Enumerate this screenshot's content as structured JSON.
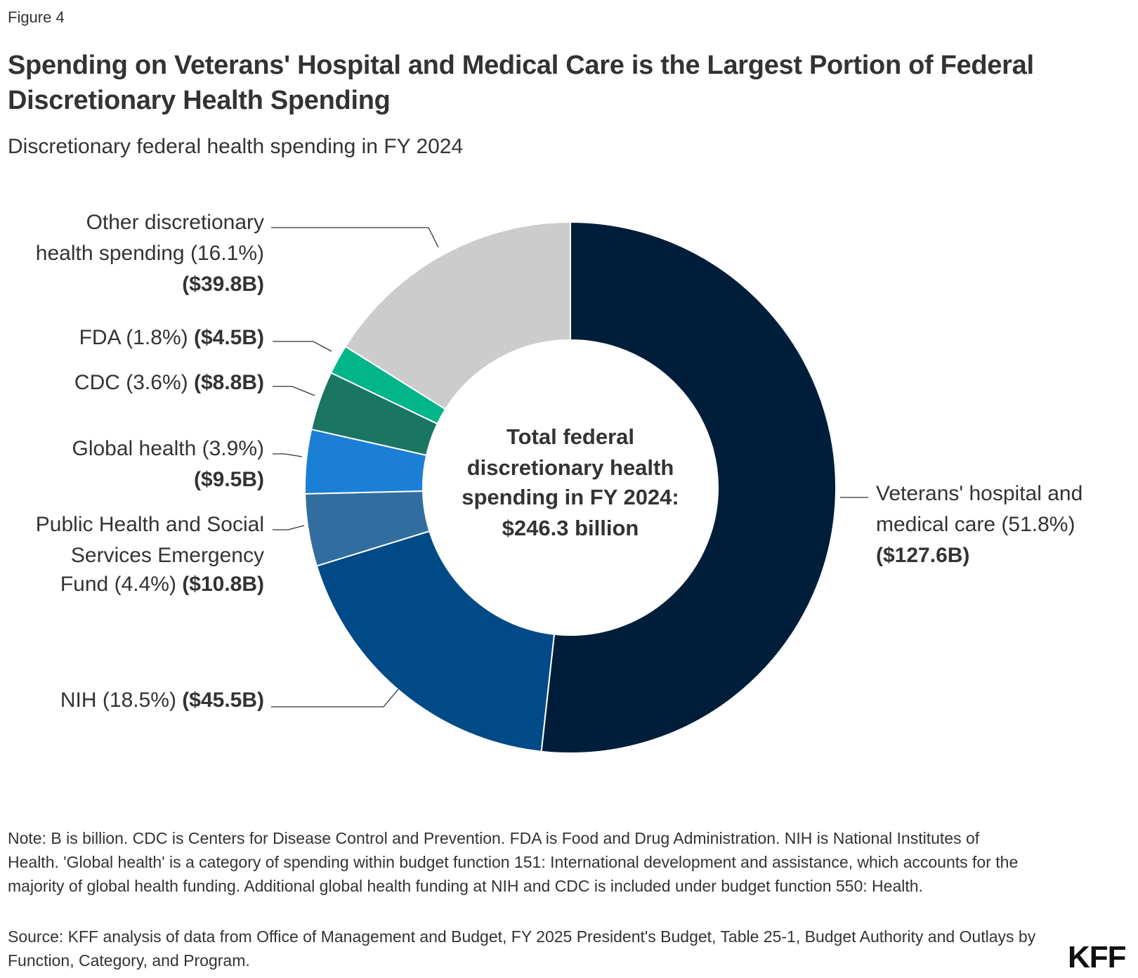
{
  "figure_label": "Figure 4",
  "title": "Spending on Veterans' Hospital and Medical Care is the Largest Portion of Federal Discretionary Health Spending",
  "subtitle": "Discretionary federal health spending in FY 2024",
  "center_label": [
    "Total federal",
    "discretionary health",
    "spending in FY 2024:",
    "$246.3 billion"
  ],
  "note": "Note: B is billion. CDC is Centers for Disease Control and Prevention. FDA is Food and Drug Administration. NIH is National Institutes of Health. 'Global health' is a category of spending within budget function 151: International development and assistance, which accounts for the majority of global health funding. Additional global health funding at NIH and CDC is included under budget function 550: Health.",
  "source": "Source: KFF analysis of data from Office of Management and Budget, FY 2025 President's Budget, Table 25-1, Budget Authority and Outlays by Function, Category, and Program.",
  "logo": "KFF",
  "chart_data": {
    "type": "pie",
    "style": "donut",
    "title": "Discretionary federal health spending in FY 2024",
    "total": 246.3,
    "unit": "billion",
    "slices": [
      {
        "name": "Veterans' hospital and medical care",
        "percent": 51.8,
        "value": 127.6,
        "value_label": "($127.6B)",
        "color": "#001e3a",
        "label_lines": [
          "Veterans' hospital and",
          "medical care (51.8%)"
        ]
      },
      {
        "name": "NIH",
        "percent": 18.5,
        "value": 45.5,
        "value_label": "($45.5B)",
        "color": "#004a87",
        "label_lines": [
          "NIH (18.5%)"
        ]
      },
      {
        "name": "Public Health and Social Services Emergency Fund",
        "percent": 4.4,
        "value": 10.8,
        "value_label": "($10.8B)",
        "color": "#326d9f",
        "label_lines": [
          "Public Health and Social",
          "Services Emergency",
          "Fund (4.4%)"
        ]
      },
      {
        "name": "Global health",
        "percent": 3.9,
        "value": 9.5,
        "value_label": "($9.5B)",
        "color": "#1c7fd6",
        "label_lines": [
          "Global health (3.9%)"
        ]
      },
      {
        "name": "CDC",
        "percent": 3.6,
        "value": 8.8,
        "value_label": "($8.8B)",
        "color": "#1b7661",
        "label_lines": [
          "CDC (3.6%)"
        ]
      },
      {
        "name": "FDA",
        "percent": 1.8,
        "value": 4.5,
        "value_label": "($4.5B)",
        "color": "#00b587",
        "label_lines": [
          "FDA (1.8%)"
        ]
      },
      {
        "name": "Other discretionary health spending",
        "percent": 16.1,
        "value": 39.8,
        "value_label": "($39.8B)",
        "color": "#cccccc",
        "label_lines": [
          "Other discretionary",
          "health spending (16.1%)"
        ]
      }
    ]
  }
}
